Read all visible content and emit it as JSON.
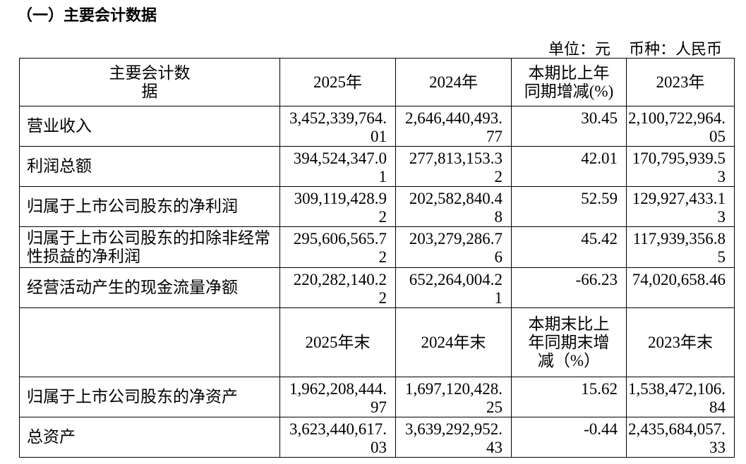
{
  "header": {
    "title": "（一）主要会计数据",
    "unit": "单位：元",
    "currency": "币种：人民币"
  },
  "table": {
    "header": [
      "主要会计数据",
      "2025年",
      "2024年",
      "本期比上年同期增减(%)",
      "2023年"
    ],
    "rows": [
      [
        "营业收入",
        "3,452,339,764.01",
        "2,646,440,493.77",
        "30.45",
        "2,100,722,964.05"
      ],
      [
        "利润总额",
        "394,524,347.01",
        "277,813,153.32",
        "42.01",
        "170,795,939.53"
      ],
      [
        "归属于上市公司股东的净利润",
        "309,119,428.92",
        "202,582,840.48",
        "52.59",
        "129,927,433.13"
      ],
      [
        "归属于上市公司股东的扣除非经常性损益的净利润",
        "295,606,565.72",
        "203,279,286.76",
        "45.42",
        "117,939,356.85"
      ],
      [
        "经营活动产生的现金流量净额",
        "220,282,140.22",
        "652,264,004.21",
        "-66.23",
        "74,020,658.46"
      ]
    ],
    "header2": [
      "2025年末",
      "2024年末",
      "本期末比上年同期末增减（%）",
      "2023年末"
    ],
    "rows2": [
      [
        "归属于上市公司股东的净资产",
        "1,962,208,444.97",
        "1,697,120,428.25",
        "15.62",
        "1,538,472,106.84"
      ],
      [
        "总资产",
        "3,623,440,617.03",
        "3,639,292,952.43",
        "-0.44",
        "2,435,684,057.33"
      ]
    ]
  }
}
